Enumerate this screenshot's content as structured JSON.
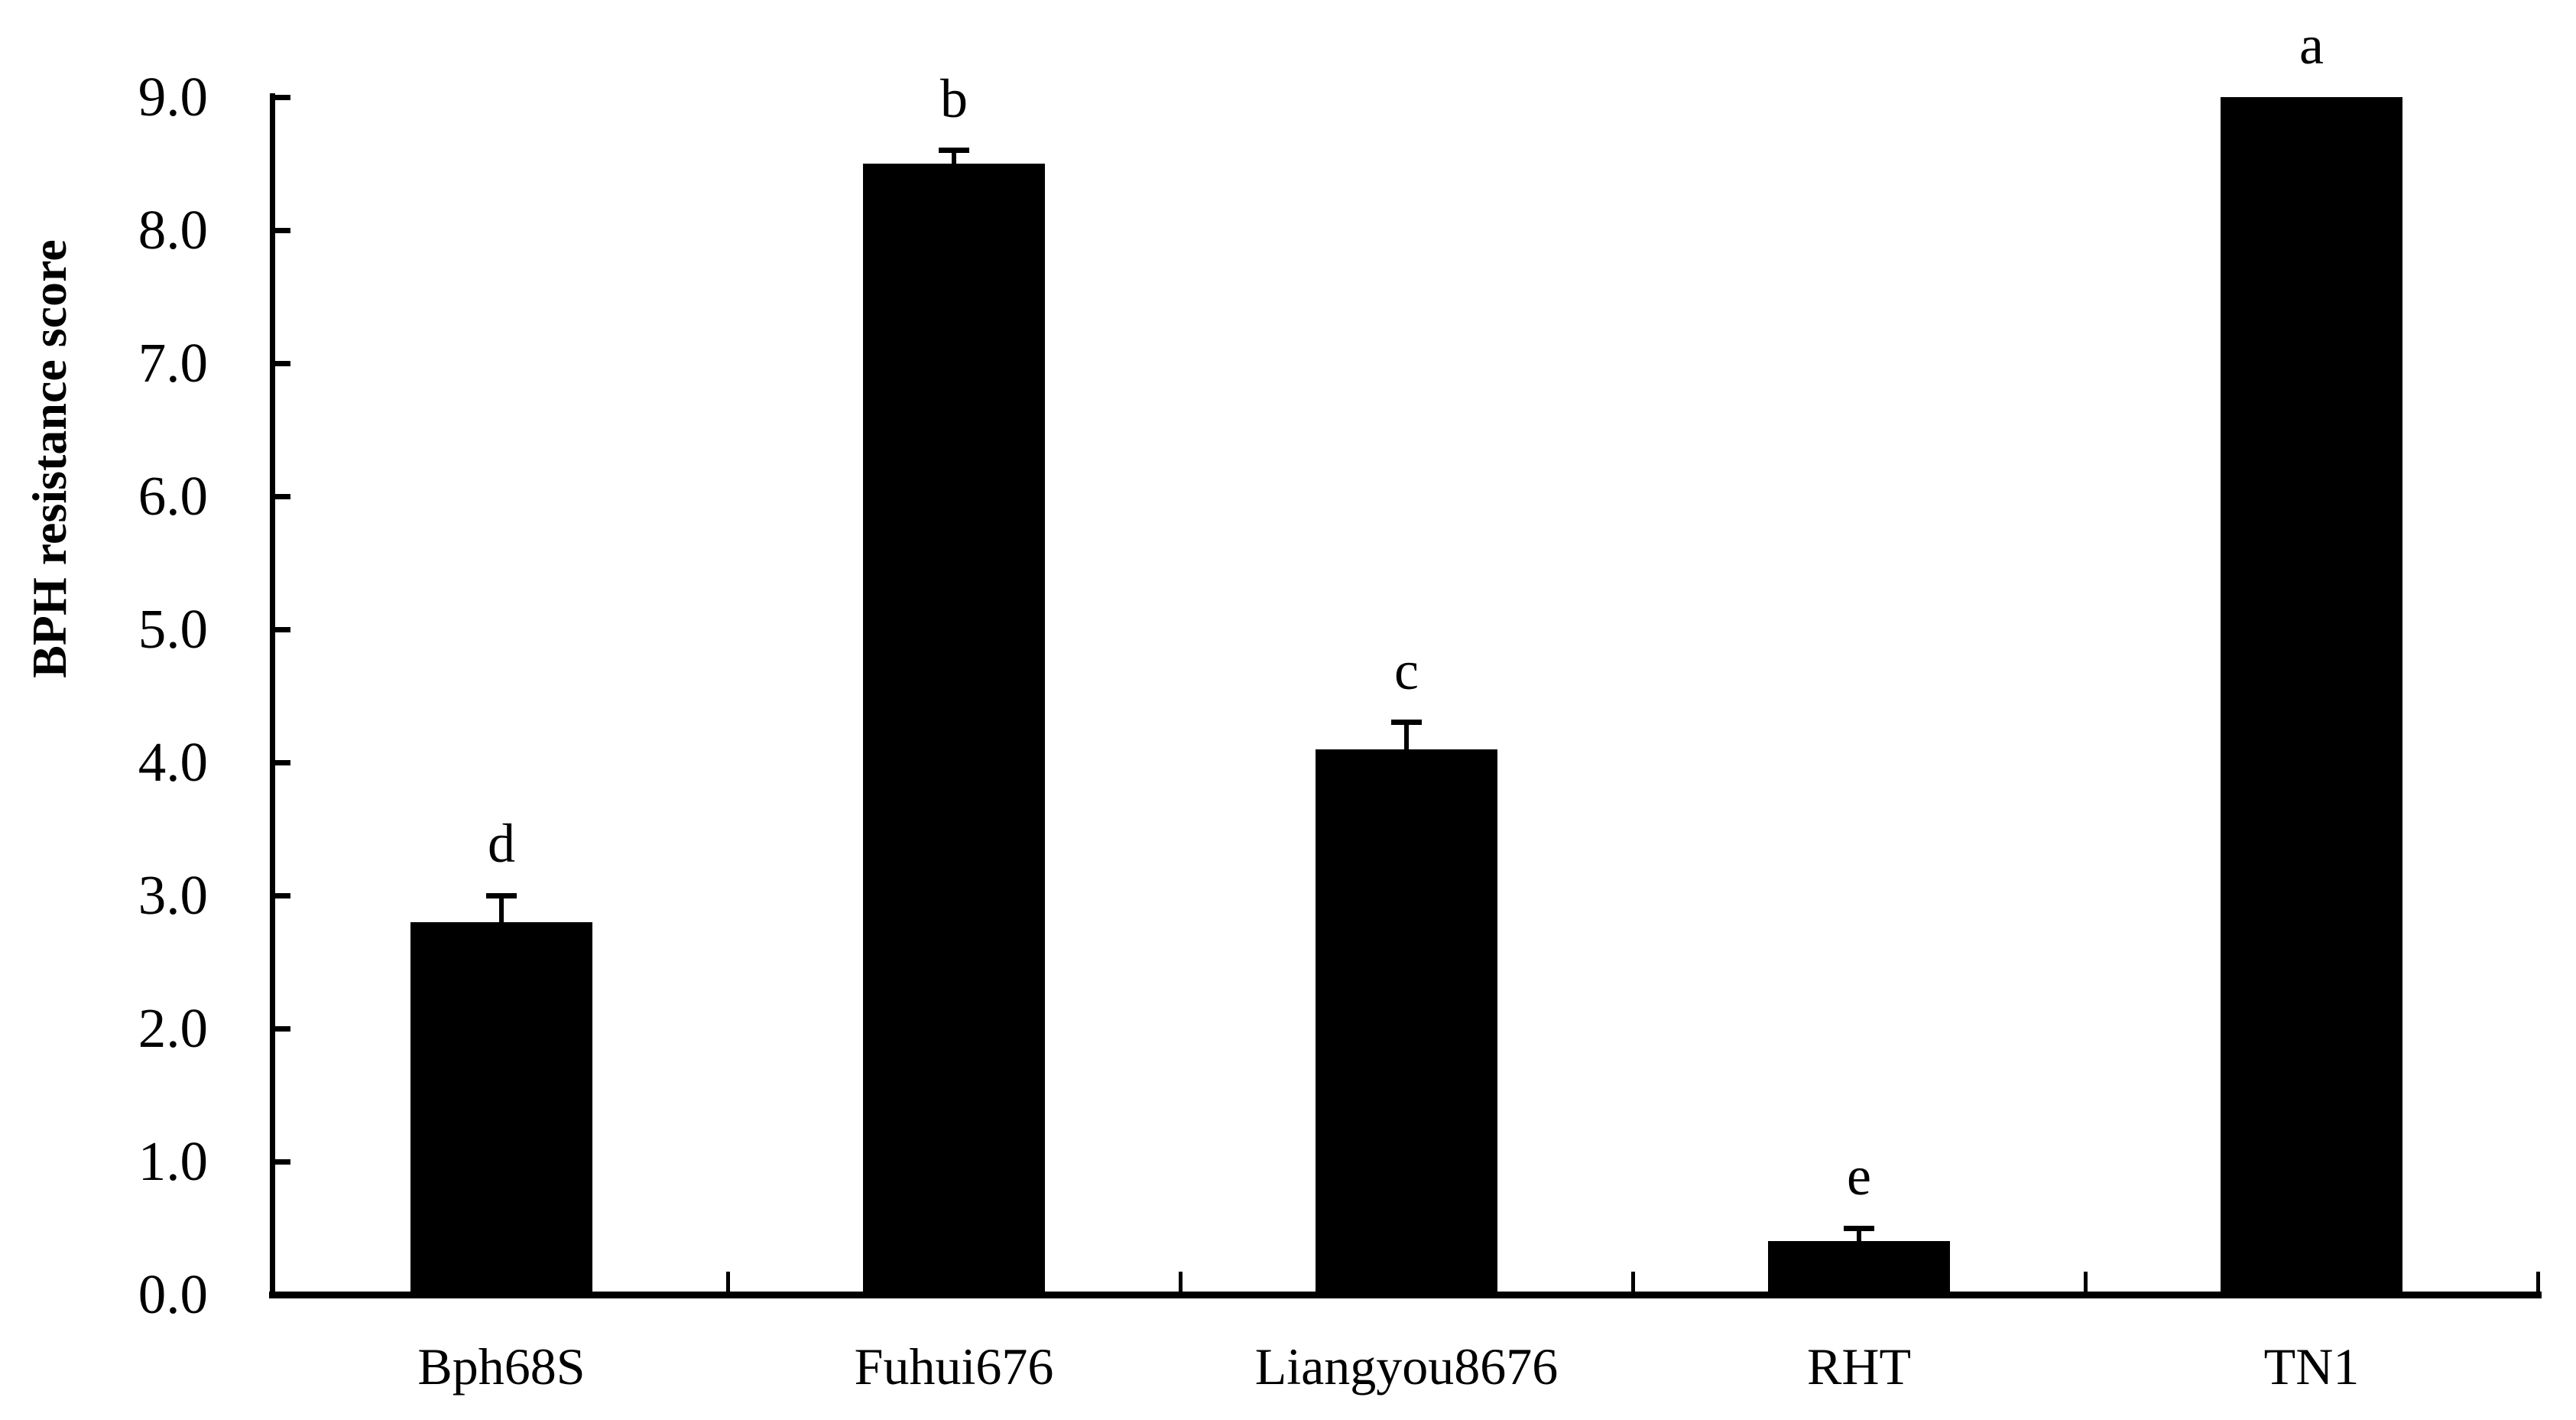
{
  "figure": {
    "background_color": "#ffffff",
    "ink_color": "#000000"
  },
  "chart_data": {
    "type": "bar",
    "title": "",
    "xlabel": "",
    "ylabel": "BPH resistance score",
    "categories": [
      "Bph68S",
      "Fuhui676",
      "Liangyou8676",
      "RHT",
      "TN1"
    ],
    "values": [
      2.8,
      8.5,
      4.1,
      0.4,
      9.0
    ],
    "error_plus": [
      0.2,
      0.1,
      0.2,
      0.1,
      0
    ],
    "sig_letters": [
      "d",
      "b",
      "c",
      "e",
      "a"
    ],
    "y_tick_labels": [
      "0.0",
      "1.0",
      "2.0",
      "3.0",
      "4.0",
      "5.0",
      "6.0",
      "7.0",
      "8.0",
      "9.0"
    ],
    "ylim": [
      0,
      9
    ],
    "bar_color": "#000000",
    "grid": false,
    "legend": null,
    "tick_direction": "in"
  }
}
